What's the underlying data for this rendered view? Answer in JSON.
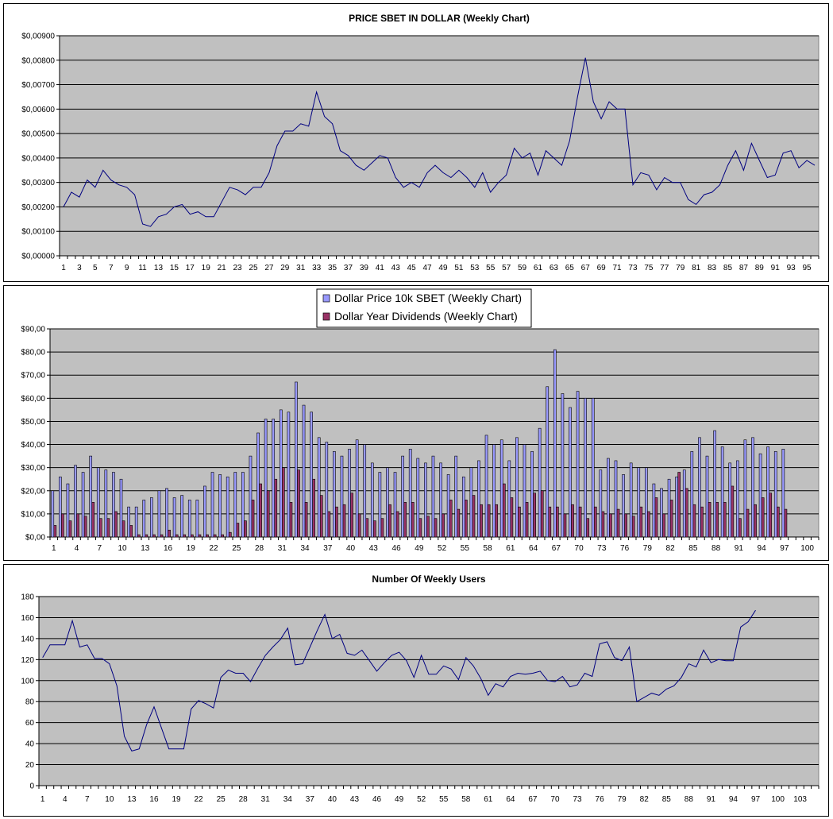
{
  "chart_data": [
    {
      "type": "line",
      "title": "PRICE SBET IN DOLLAR (Weekly Chart)",
      "xlabel": "",
      "ylabel": "",
      "ylim": [
        0,
        0.009
      ],
      "y_ticks": [
        0,
        0.001,
        0.002,
        0.003,
        0.004,
        0.005,
        0.006,
        0.007,
        0.008,
        0.009
      ],
      "y_tick_labels": [
        "$0,00000",
        "$0,00100",
        "$0,00200",
        "$0,00300",
        "$0,00400",
        "$0,00500",
        "$0,00600",
        "$0,00700",
        "$0,00800",
        "$0,00900"
      ],
      "x_ticks_shown": [
        1,
        3,
        5,
        7,
        9,
        11,
        13,
        15,
        17,
        19,
        21,
        23,
        25,
        27,
        29,
        31,
        33,
        35,
        37,
        39,
        41,
        43,
        45,
        47,
        49,
        51,
        53,
        55,
        57,
        59,
        61,
        63,
        65,
        67,
        69,
        71,
        73,
        75,
        77,
        79,
        81,
        83,
        85,
        87,
        89,
        91,
        93,
        95
      ],
      "x_max": 96,
      "grid": true,
      "legend": "none",
      "series": [
        {
          "color": "#000080",
          "values": [
            0.002,
            0.0026,
            0.0024,
            0.0031,
            0.0028,
            0.0035,
            0.0031,
            0.0029,
            0.0028,
            0.0025,
            0.0013,
            0.0012,
            0.0016,
            0.0017,
            0.002,
            0.0021,
            0.0017,
            0.0018,
            0.0016,
            0.0016,
            0.0022,
            0.0028,
            0.0027,
            0.0025,
            0.0028,
            0.0028,
            0.0034,
            0.0045,
            0.0051,
            0.0051,
            0.0054,
            0.0053,
            0.0067,
            0.0057,
            0.0054,
            0.0043,
            0.0041,
            0.0037,
            0.0035,
            0.0038,
            0.0041,
            0.004,
            0.0032,
            0.0028,
            0.003,
            0.0028,
            0.0034,
            0.0037,
            0.0034,
            0.0032,
            0.0035,
            0.0032,
            0.0028,
            0.0034,
            0.0026,
            0.003,
            0.0033,
            0.0044,
            0.004,
            0.0042,
            0.0033,
            0.0043,
            0.004,
            0.0037,
            0.0047,
            0.0065,
            0.0081,
            0.0063,
            0.0056,
            0.0063,
            0.006,
            0.006,
            0.0029,
            0.0034,
            0.0033,
            0.0027,
            0.0032,
            0.003,
            0.003,
            0.0023,
            0.0021,
            0.0025,
            0.0026,
            0.0029,
            0.0037,
            0.0043,
            0.0035,
            0.0046,
            0.0039,
            0.0032,
            0.0033,
            0.0042,
            0.0043,
            0.0036,
            0.0039,
            0.0037
          ]
        }
      ]
    },
    {
      "type": "bar",
      "title": "",
      "xlabel": "",
      "ylabel": "",
      "ylim": [
        0,
        90
      ],
      "y_ticks": [
        0,
        10,
        20,
        30,
        40,
        50,
        60,
        70,
        80,
        90
      ],
      "y_tick_labels": [
        "$0,00",
        "$10,00",
        "$20,00",
        "$30,00",
        "$40,00",
        "$50,00",
        "$60,00",
        "$70,00",
        "$80,00",
        "$90,00"
      ],
      "x_ticks_shown": [
        1,
        4,
        7,
        10,
        13,
        16,
        19,
        22,
        25,
        28,
        31,
        34,
        37,
        40,
        43,
        46,
        49,
        52,
        55,
        58,
        61,
        64,
        67,
        70,
        73,
        76,
        79,
        82,
        85,
        88,
        91,
        94,
        97,
        100
      ],
      "x_max": 101,
      "grid": true,
      "legend": "top-center",
      "series": [
        {
          "name": "Dollar Price 10k SBET (Weekly Chart)",
          "color": "#9999ff",
          "values": [
            20,
            26,
            23,
            31,
            28,
            35,
            30,
            29,
            28,
            25,
            13,
            13,
            16,
            17,
            20,
            21,
            17,
            18,
            16,
            16,
            22,
            28,
            27,
            26,
            28,
            28,
            35,
            45,
            51,
            51,
            55,
            54,
            67,
            57,
            54,
            43,
            41,
            37,
            35,
            38,
            42,
            40,
            32,
            28,
            30,
            28,
            35,
            38,
            34,
            32,
            35,
            32,
            27,
            35,
            26,
            30,
            33,
            44,
            40,
            42,
            33,
            43,
            40,
            37,
            47,
            65,
            81,
            62,
            56,
            63,
            60,
            60,
            29,
            34,
            33,
            27,
            32,
            30,
            30,
            23,
            21,
            25,
            26,
            29,
            37,
            43,
            35,
            46,
            39,
            32,
            33,
            42,
            43,
            36,
            39,
            37,
            38
          ]
        },
        {
          "name": "Dollar Year Dividends (Weekly Chart)",
          "color": "#993366",
          "values": [
            5,
            10,
            7,
            10,
            9,
            15,
            8,
            8,
            11,
            7,
            5,
            1,
            1,
            1,
            1,
            3,
            1,
            1,
            1,
            1,
            1,
            1,
            1,
            2,
            6,
            7,
            16,
            23,
            20,
            25,
            30,
            15,
            29,
            15,
            25,
            18,
            11,
            13,
            14,
            19,
            10,
            8,
            7,
            8,
            14,
            11,
            15,
            15,
            8,
            9,
            8,
            10,
            16,
            12,
            16,
            18,
            14,
            14,
            14,
            23,
            17,
            13,
            15,
            19,
            20,
            13,
            13,
            10,
            14,
            13,
            8,
            13,
            11,
            10,
            12,
            10,
            9,
            13,
            11,
            17,
            10,
            16,
            28,
            21,
            14,
            13,
            15,
            15,
            15,
            22,
            8,
            12,
            14,
            17,
            19,
            13,
            12
          ]
        }
      ]
    },
    {
      "type": "line",
      "title": "Number Of Weekly Users",
      "xlabel": "",
      "ylabel": "",
      "ylim": [
        0,
        180
      ],
      "y_ticks": [
        0,
        20,
        40,
        60,
        80,
        100,
        120,
        140,
        160,
        180
      ],
      "y_tick_labels": [
        "0",
        "20",
        "40",
        "60",
        "80",
        "100",
        "120",
        "140",
        "160",
        "180"
      ],
      "x_ticks_shown": [
        1,
        4,
        7,
        10,
        13,
        16,
        19,
        22,
        25,
        28,
        31,
        34,
        37,
        40,
        43,
        46,
        49,
        52,
        55,
        58,
        61,
        64,
        67,
        70,
        73,
        76,
        79,
        82,
        85,
        88,
        91,
        94,
        97,
        100,
        103
      ],
      "x_max": 105,
      "grid": true,
      "legend": "none",
      "series": [
        {
          "color": "#000080",
          "values": [
            122,
            134,
            134,
            134,
            157,
            132,
            134,
            121,
            121,
            116,
            95,
            47,
            33,
            35,
            58,
            75,
            55,
            35,
            35,
            35,
            73,
            81,
            78,
            74,
            103,
            110,
            107,
            107,
            99,
            112,
            124,
            132,
            139,
            150,
            115,
            116,
            132,
            148,
            163,
            140,
            144,
            126,
            124,
            129,
            119,
            109,
            117,
            124,
            127,
            119,
            103,
            124,
            106,
            106,
            114,
            111,
            101,
            122,
            114,
            102,
            86,
            97,
            94,
            104,
            107,
            106,
            107,
            109,
            100,
            99,
            104,
            94,
            96,
            107,
            104,
            135,
            137,
            122,
            119,
            132,
            80,
            84,
            88,
            86,
            92,
            95,
            103,
            116,
            113,
            129,
            117,
            120,
            119,
            119,
            151,
            156,
            167
          ]
        }
      ]
    }
  ]
}
